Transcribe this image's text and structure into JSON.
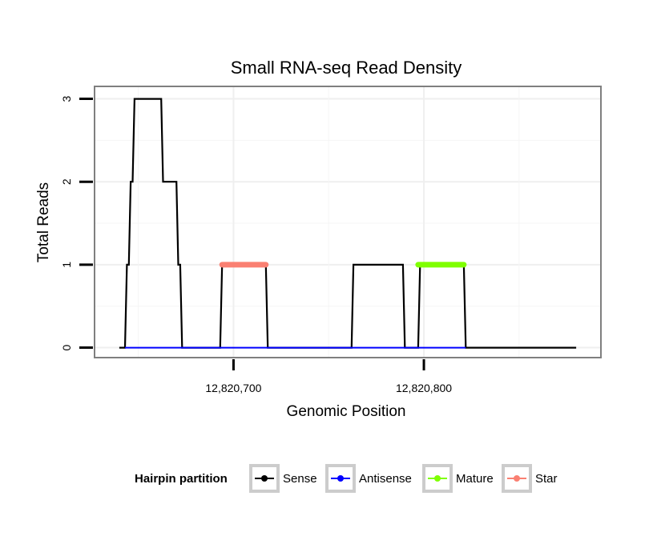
{
  "chart_data": {
    "type": "line",
    "title": "Small RNA-seq Read Density",
    "xlabel": "Genomic Position",
    "ylabel": "Total Reads",
    "xlim": [
      12820627,
      12820893
    ],
    "ylim": [
      -0.12,
      3.15
    ],
    "x_ticks": [
      {
        "value": 12820700,
        "label": "12,820,700"
      },
      {
        "value": 12820800,
        "label": "12,820,800"
      }
    ],
    "y_ticks": [
      {
        "value": 0,
        "label": "0"
      },
      {
        "value": 1,
        "label": "1"
      },
      {
        "value": 2,
        "label": "2"
      },
      {
        "value": 3,
        "label": "3"
      }
    ],
    "grid": true,
    "series": [
      {
        "name": "Sense",
        "color": "#000000",
        "x": [
          12820640,
          12820643,
          12820644,
          12820645,
          12820646,
          12820647,
          12820648,
          12820649,
          12820662,
          12820663,
          12820664,
          12820670,
          12820671,
          12820672,
          12820673,
          12820675,
          12820693,
          12820694,
          12820717,
          12820718,
          12820762,
          12820763,
          12820789,
          12820790,
          12820797,
          12820798,
          12820821,
          12820822,
          12820880
        ],
        "y": [
          0,
          0,
          1,
          1,
          2,
          2,
          3,
          3,
          3,
          2,
          2,
          2,
          1,
          1,
          0,
          0,
          0,
          1,
          1,
          0,
          0,
          1,
          1,
          0,
          0,
          1,
          1,
          0,
          0
        ]
      },
      {
        "name": "Antisense",
        "color": "#0000ff",
        "x": [
          12820643,
          12820673,
          12820693,
          12820718,
          12820763,
          12820789,
          12820798,
          12820822
        ],
        "y": [
          0,
          0,
          0,
          0,
          0,
          0,
          0,
          0
        ]
      },
      {
        "name": "Mature",
        "color": "#7fff00",
        "x": [
          12820797,
          12820821
        ],
        "y": [
          1,
          1
        ]
      },
      {
        "name": "Star",
        "color": "#fa8072",
        "x": [
          12820694,
          12820717
        ],
        "y": [
          1,
          1
        ]
      }
    ],
    "legend": {
      "title": "Hairpin partition",
      "position": "bottom",
      "items": [
        {
          "label": "Sense",
          "color": "#000000"
        },
        {
          "label": "Antisense",
          "color": "#0000ff"
        },
        {
          "label": "Mature",
          "color": "#7fff00"
        },
        {
          "label": "Star",
          "color": "#fa8072"
        }
      ]
    }
  }
}
